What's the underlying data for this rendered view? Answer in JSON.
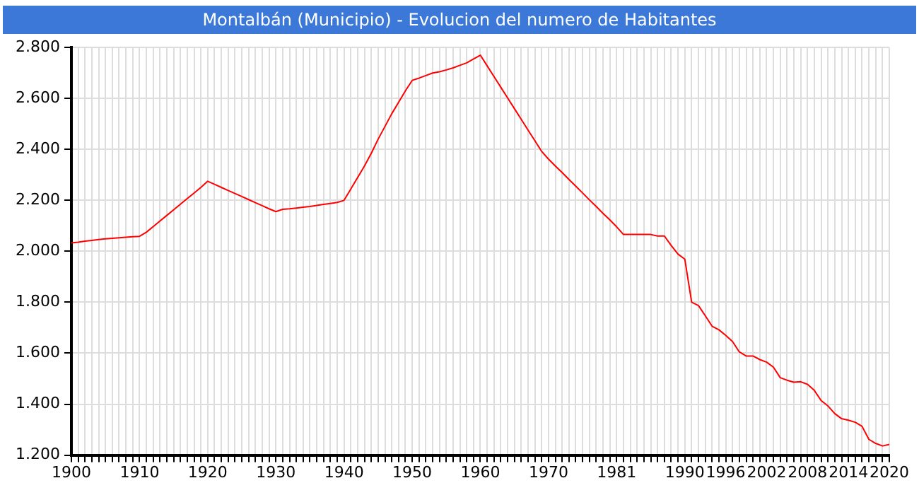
{
  "chart_data": {
    "type": "line",
    "title": "Montalbán (Municipio) - Evolucion del numero de Habitantes",
    "categories": [
      "1900",
      null,
      null,
      null,
      null,
      null,
      null,
      null,
      null,
      null,
      "1910",
      null,
      null,
      null,
      null,
      null,
      null,
      null,
      null,
      null,
      "1920",
      null,
      null,
      null,
      null,
      null,
      null,
      null,
      null,
      null,
      "1930",
      null,
      null,
      null,
      null,
      null,
      null,
      null,
      null,
      null,
      "1940",
      null,
      null,
      null,
      null,
      null,
      null,
      null,
      null,
      null,
      "1950",
      null,
      null,
      null,
      null,
      null,
      null,
      null,
      null,
      null,
      "1960",
      null,
      null,
      null,
      null,
      null,
      null,
      null,
      null,
      null,
      "1970",
      null,
      null,
      null,
      null,
      null,
      null,
      null,
      null,
      null,
      "1981",
      null,
      null,
      null,
      null,
      null,
      null,
      null,
      null,
      null,
      "1990",
      null,
      null,
      null,
      null,
      null,
      "1996",
      null,
      null,
      null,
      null,
      null,
      "2002",
      null,
      null,
      null,
      null,
      null,
      "2008",
      null,
      null,
      null,
      null,
      null,
      "2014",
      null,
      null,
      null,
      null,
      null,
      "2020"
    ],
    "series": [
      {
        "color": "#ff0000",
        "values": [
          2033,
          2036,
          2040,
          2043,
          2046,
          2049,
          2051,
          2053,
          2055,
          2057,
          2059,
          2075,
          2097,
          2119,
          2141,
          2163,
          2185,
          2207,
          2229,
          2251,
          2275,
          2263,
          2251,
          2239,
          2227,
          2215,
          2203,
          2191,
          2179,
          2167,
          2156,
          2165,
          2167,
          2170,
          2173,
          2176,
          2180,
          2184,
          2188,
          2192,
          2200,
          2245,
          2290,
          2335,
          2385,
          2440,
          2490,
          2540,
          2585,
          2630,
          2671,
          2680,
          2690,
          2700,
          2705,
          2712,
          2720,
          2730,
          2740,
          2755,
          2770,
          2728,
          2686,
          2644,
          2602,
          2560,
          2518,
          2476,
          2434,
          2392,
          2362,
          2335,
          2309,
          2282,
          2256,
          2229,
          2202,
          2176,
          2149,
          2123,
          2096,
          2066,
          2066,
          2066,
          2066,
          2066,
          2060,
          2060,
          2023,
          1989,
          1969,
          1800,
          1787,
          1747,
          1706,
          1692,
          1670,
          1646,
          1605,
          1589,
          1589,
          1575,
          1565,
          1545,
          1504,
          1494,
          1486,
          1488,
          1478,
          1454,
          1414,
          1393,
          1363,
          1343,
          1337,
          1329,
          1313,
          1262,
          1246,
          1236,
          1242
        ]
      }
    ],
    "ylim": [
      1200,
      2800
    ],
    "yticks": [
      {
        "value": 1200,
        "label": "1.200"
      },
      {
        "value": 1400,
        "label": "1.400"
      },
      {
        "value": 1600,
        "label": "1.600"
      },
      {
        "value": 1800,
        "label": "1.800"
      },
      {
        "value": 2000,
        "label": "2.000"
      },
      {
        "value": 2200,
        "label": "2.200"
      },
      {
        "value": 2400,
        "label": "2.400"
      },
      {
        "value": 2600,
        "label": "2.600"
      },
      {
        "value": 2800,
        "label": "2.800"
      }
    ],
    "grid": true,
    "marker": "none",
    "line_style": "solid",
    "legend": false
  }
}
